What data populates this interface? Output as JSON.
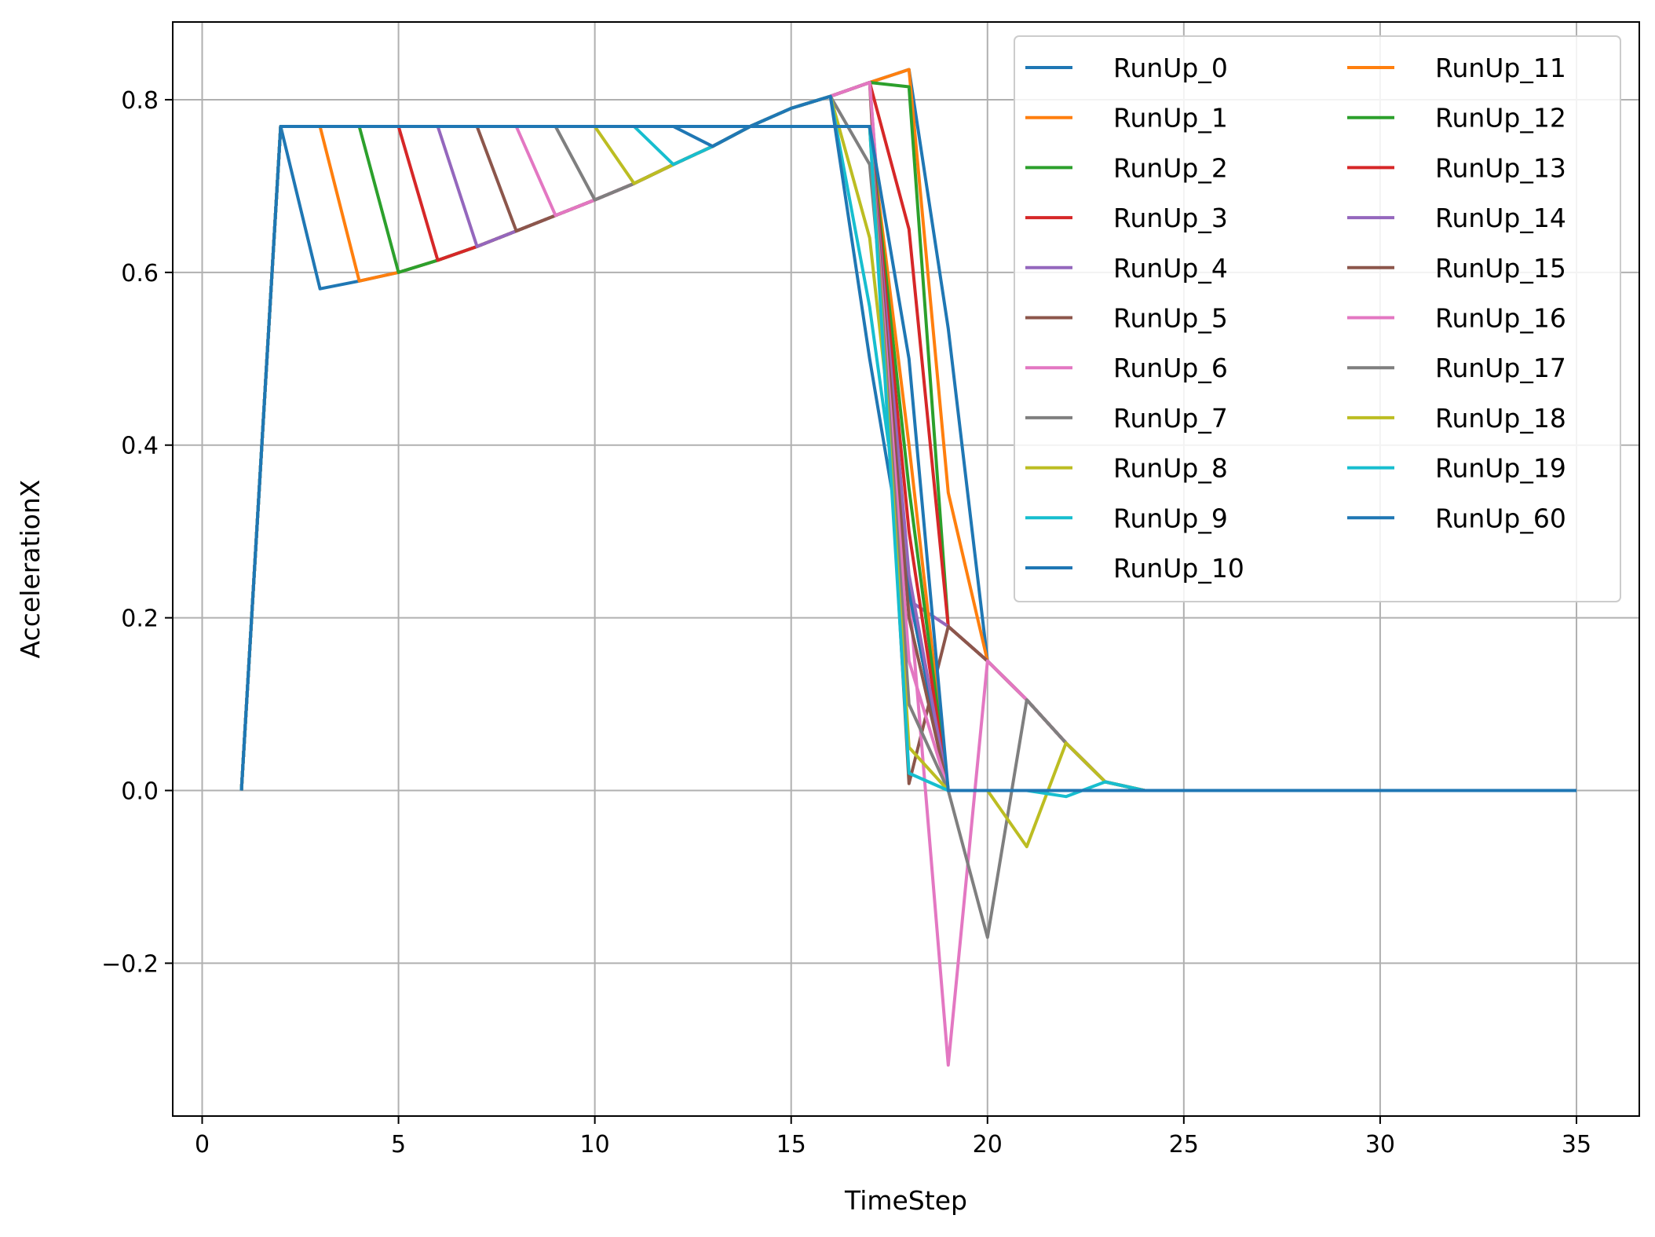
{
  "chart_data": {
    "type": "line",
    "title": "",
    "xlabel": "TimeStep",
    "ylabel": "AccelerationX",
    "xlim": [
      -0.75,
      36.6
    ],
    "ylim": [
      -0.377,
      0.89
    ],
    "xticks": [
      0,
      5,
      10,
      15,
      20,
      25,
      30,
      35
    ],
    "yticks": [
      -0.2,
      0.0,
      0.2,
      0.4,
      0.6,
      0.8
    ],
    "ytick_labels": [
      "−0.2",
      "0.0",
      "0.2",
      "0.4",
      "0.6",
      "0.8"
    ],
    "grid": true,
    "legend": {
      "placement": "top-right",
      "columns": 2
    },
    "series": [
      {
        "name": "RunUp_0",
        "color": "#1f77b4",
        "x": [
          1,
          2,
          3,
          4,
          5,
          6,
          7,
          8,
          9,
          10,
          11,
          12,
          13,
          14,
          15,
          16,
          17,
          18,
          19,
          20,
          21,
          22,
          23,
          24,
          35
        ],
        "y": [
          0,
          0.769,
          0.581,
          0.59,
          0.6,
          0.614,
          0.63,
          0.648,
          0.666,
          0.684,
          0.703,
          0.725,
          0.746,
          0.77,
          0.79,
          0.804,
          0.82,
          0.835,
          0.535,
          0.15,
          0.105,
          0.055,
          0.01,
          0,
          0
        ]
      },
      {
        "name": "RunUp_1",
        "color": "#ff7f0e",
        "x": [
          1,
          2,
          3,
          4,
          5,
          6,
          7,
          8,
          9,
          10,
          11,
          12,
          13,
          14,
          15,
          16,
          17,
          18,
          19,
          20,
          21,
          22,
          23,
          24,
          35
        ],
        "y": [
          0,
          0.769,
          0.769,
          0.59,
          0.6,
          0.614,
          0.63,
          0.648,
          0.666,
          0.684,
          0.703,
          0.725,
          0.746,
          0.77,
          0.79,
          0.804,
          0.82,
          0.835,
          0.345,
          0.15,
          0.105,
          0.055,
          0.01,
          0,
          0
        ]
      },
      {
        "name": "RunUp_2",
        "color": "#2ca02c",
        "x": [
          1,
          2,
          3,
          4,
          5,
          6,
          7,
          8,
          9,
          10,
          11,
          12,
          13,
          14,
          15,
          16,
          17,
          18,
          19,
          20,
          21,
          22,
          23,
          24,
          35
        ],
        "y": [
          0,
          0.769,
          0.769,
          0.769,
          0.6,
          0.614,
          0.63,
          0.648,
          0.666,
          0.684,
          0.703,
          0.725,
          0.746,
          0.77,
          0.79,
          0.804,
          0.82,
          0.815,
          0.19,
          0.15,
          0.105,
          0.055,
          0.01,
          0,
          0
        ]
      },
      {
        "name": "RunUp_3",
        "color": "#d62728",
        "x": [
          1,
          2,
          3,
          4,
          5,
          6,
          7,
          8,
          9,
          10,
          11,
          12,
          13,
          14,
          15,
          16,
          17,
          18,
          19,
          20,
          21,
          22,
          23,
          24,
          35
        ],
        "y": [
          0,
          0.769,
          0.769,
          0.769,
          0.769,
          0.614,
          0.63,
          0.648,
          0.666,
          0.684,
          0.703,
          0.725,
          0.746,
          0.77,
          0.79,
          0.804,
          0.82,
          0.65,
          0.19,
          0.15,
          0.105,
          0.055,
          0.01,
          0,
          0
        ]
      },
      {
        "name": "RunUp_4",
        "color": "#9467bd",
        "x": [
          1,
          2,
          3,
          4,
          5,
          6,
          7,
          8,
          9,
          10,
          11,
          12,
          13,
          14,
          15,
          16,
          17,
          18,
          19,
          20,
          21,
          22,
          23,
          24,
          35
        ],
        "y": [
          0,
          0.769,
          0.769,
          0.769,
          0.769,
          0.769,
          0.63,
          0.648,
          0.666,
          0.684,
          0.703,
          0.725,
          0.746,
          0.77,
          0.79,
          0.804,
          0.82,
          0.22,
          0.19,
          0.15,
          0.105,
          0.055,
          0.01,
          0,
          0
        ]
      },
      {
        "name": "RunUp_5",
        "color": "#8c564b",
        "x": [
          1,
          2,
          3,
          4,
          5,
          6,
          7,
          8,
          9,
          10,
          11,
          12,
          13,
          14,
          15,
          16,
          17,
          18,
          19,
          20,
          21,
          22,
          23,
          24,
          35
        ],
        "y": [
          0,
          0.769,
          0.769,
          0.769,
          0.769,
          0.769,
          0.769,
          0.648,
          0.666,
          0.684,
          0.703,
          0.725,
          0.746,
          0.77,
          0.79,
          0.804,
          0.82,
          0.008,
          0.19,
          0.15,
          0.105,
          0.055,
          0.01,
          0,
          0
        ]
      },
      {
        "name": "RunUp_6",
        "color": "#e377c2",
        "x": [
          1,
          2,
          3,
          4,
          5,
          6,
          7,
          8,
          9,
          10,
          11,
          12,
          13,
          14,
          15,
          16,
          17,
          18,
          19,
          20,
          21,
          22,
          23,
          24,
          35
        ],
        "y": [
          0,
          0.769,
          0.769,
          0.769,
          0.769,
          0.769,
          0.769,
          0.769,
          0.666,
          0.684,
          0.703,
          0.725,
          0.746,
          0.77,
          0.79,
          0.804,
          0.82,
          0.23,
          -0.318,
          0.15,
          0.105,
          0.055,
          0.01,
          0,
          0
        ]
      },
      {
        "name": "RunUp_7",
        "color": "#7f7f7f",
        "x": [
          1,
          2,
          3,
          4,
          5,
          6,
          7,
          8,
          9,
          10,
          11,
          12,
          13,
          14,
          15,
          16,
          17,
          18,
          19,
          20,
          21,
          22,
          23,
          24,
          35
        ],
        "y": [
          0,
          0.769,
          0.769,
          0.769,
          0.769,
          0.769,
          0.769,
          0.769,
          0.769,
          0.684,
          0.703,
          0.725,
          0.746,
          0.77,
          0.79,
          0.804,
          0.725,
          0.23,
          0.0,
          -0.17,
          0.105,
          0.055,
          0.01,
          0,
          0
        ]
      },
      {
        "name": "RunUp_8",
        "color": "#bcbd22",
        "x": [
          1,
          2,
          3,
          4,
          5,
          6,
          7,
          8,
          9,
          10,
          11,
          12,
          13,
          14,
          15,
          16,
          17,
          18,
          19,
          20,
          21,
          22,
          23,
          24,
          35
        ],
        "y": [
          0,
          0.769,
          0.769,
          0.769,
          0.769,
          0.769,
          0.769,
          0.769,
          0.769,
          0.769,
          0.703,
          0.725,
          0.746,
          0.77,
          0.79,
          0.804,
          0.64,
          0.23,
          0.0,
          0.0,
          -0.065,
          0.055,
          0.01,
          0,
          0
        ]
      },
      {
        "name": "RunUp_9",
        "color": "#17becf",
        "x": [
          1,
          2,
          3,
          4,
          5,
          6,
          7,
          8,
          9,
          10,
          11,
          12,
          13,
          14,
          15,
          16,
          17,
          18,
          19,
          20,
          21,
          22,
          23,
          24,
          35
        ],
        "y": [
          0,
          0.769,
          0.769,
          0.769,
          0.769,
          0.769,
          0.769,
          0.769,
          0.769,
          0.769,
          0.769,
          0.725,
          0.746,
          0.77,
          0.79,
          0.804,
          0.56,
          0.23,
          0.0,
          0.0,
          0.0,
          -0.007,
          0.01,
          0,
          0
        ]
      },
      {
        "name": "RunUp_10",
        "color": "#1f77b4",
        "x": [
          1,
          2,
          3,
          4,
          5,
          6,
          7,
          8,
          9,
          10,
          11,
          12,
          13,
          14,
          15,
          16,
          17,
          18,
          19,
          20,
          21,
          22,
          23,
          24,
          35
        ],
        "y": [
          0,
          0.769,
          0.769,
          0.769,
          0.769,
          0.769,
          0.769,
          0.769,
          0.769,
          0.769,
          0.769,
          0.769,
          0.746,
          0.77,
          0.79,
          0.804,
          0.5,
          0.23,
          0.0,
          0.0,
          0.0,
          0.0,
          0.0,
          0,
          0
        ]
      },
      {
        "name": "RunUp_11",
        "color": "#ff7f0e",
        "x": [
          1,
          2,
          3,
          4,
          5,
          6,
          7,
          8,
          9,
          10,
          11,
          12,
          13,
          14,
          15,
          16,
          17,
          18,
          19,
          20,
          21,
          22,
          23,
          24,
          35
        ],
        "y": [
          0,
          0.769,
          0.769,
          0.769,
          0.769,
          0.769,
          0.769,
          0.769,
          0.769,
          0.769,
          0.769,
          0.769,
          0.769,
          0.769,
          0.769,
          0.769,
          0.769,
          0.4,
          0.0,
          0.0,
          0.0,
          0.0,
          0.0,
          0,
          0
        ]
      },
      {
        "name": "RunUp_12",
        "color": "#2ca02c",
        "x": [
          1,
          2,
          3,
          4,
          5,
          6,
          7,
          8,
          9,
          10,
          11,
          12,
          13,
          14,
          15,
          16,
          17,
          18,
          19,
          20,
          21,
          22,
          23,
          24,
          35
        ],
        "y": [
          0,
          0.769,
          0.769,
          0.769,
          0.769,
          0.769,
          0.769,
          0.769,
          0.769,
          0.769,
          0.769,
          0.769,
          0.769,
          0.769,
          0.769,
          0.769,
          0.769,
          0.35,
          0.0,
          0.0,
          0.0,
          0.0,
          0.0,
          0,
          0
        ]
      },
      {
        "name": "RunUp_13",
        "color": "#d62728",
        "x": [
          1,
          2,
          3,
          4,
          5,
          6,
          7,
          8,
          9,
          10,
          11,
          12,
          13,
          14,
          15,
          16,
          17,
          18,
          19,
          20,
          21,
          22,
          23,
          24,
          35
        ],
        "y": [
          0,
          0.769,
          0.769,
          0.769,
          0.769,
          0.769,
          0.769,
          0.769,
          0.769,
          0.769,
          0.769,
          0.769,
          0.769,
          0.769,
          0.769,
          0.769,
          0.769,
          0.3,
          0.0,
          0.0,
          0.0,
          0.0,
          0.0,
          0,
          0
        ]
      },
      {
        "name": "RunUp_14",
        "color": "#9467bd",
        "x": [
          1,
          2,
          3,
          4,
          5,
          6,
          7,
          8,
          9,
          10,
          11,
          12,
          13,
          14,
          15,
          16,
          17,
          18,
          19,
          20,
          21,
          22,
          23,
          24,
          35
        ],
        "y": [
          0,
          0.769,
          0.769,
          0.769,
          0.769,
          0.769,
          0.769,
          0.769,
          0.769,
          0.769,
          0.769,
          0.769,
          0.769,
          0.769,
          0.769,
          0.769,
          0.769,
          0.25,
          0.0,
          0.0,
          0.0,
          0.0,
          0.0,
          0,
          0
        ]
      },
      {
        "name": "RunUp_15",
        "color": "#8c564b",
        "x": [
          1,
          2,
          3,
          4,
          5,
          6,
          7,
          8,
          9,
          10,
          11,
          12,
          13,
          14,
          15,
          16,
          17,
          18,
          19,
          20,
          21,
          22,
          23,
          24,
          35
        ],
        "y": [
          0,
          0.769,
          0.769,
          0.769,
          0.769,
          0.769,
          0.769,
          0.769,
          0.769,
          0.769,
          0.769,
          0.769,
          0.769,
          0.769,
          0.769,
          0.769,
          0.769,
          0.2,
          0.0,
          0.0,
          0.0,
          0.0,
          0.0,
          0,
          0
        ]
      },
      {
        "name": "RunUp_16",
        "color": "#e377c2",
        "x": [
          1,
          2,
          3,
          4,
          5,
          6,
          7,
          8,
          9,
          10,
          11,
          12,
          13,
          14,
          15,
          16,
          17,
          18,
          19,
          20,
          21,
          22,
          23,
          24,
          35
        ],
        "y": [
          0,
          0.769,
          0.769,
          0.769,
          0.769,
          0.769,
          0.769,
          0.769,
          0.769,
          0.769,
          0.769,
          0.769,
          0.769,
          0.769,
          0.769,
          0.769,
          0.769,
          0.15,
          0.0,
          0.0,
          0.0,
          0.0,
          0.0,
          0,
          0
        ]
      },
      {
        "name": "RunUp_17",
        "color": "#7f7f7f",
        "x": [
          1,
          2,
          3,
          4,
          5,
          6,
          7,
          8,
          9,
          10,
          11,
          12,
          13,
          14,
          15,
          16,
          17,
          18,
          19,
          20,
          21,
          22,
          23,
          24,
          35
        ],
        "y": [
          0,
          0.769,
          0.769,
          0.769,
          0.769,
          0.769,
          0.769,
          0.769,
          0.769,
          0.769,
          0.769,
          0.769,
          0.769,
          0.769,
          0.769,
          0.769,
          0.769,
          0.1,
          0.0,
          0.0,
          0.0,
          0.0,
          0.0,
          0,
          0
        ]
      },
      {
        "name": "RunUp_18",
        "color": "#bcbd22",
        "x": [
          1,
          2,
          3,
          4,
          5,
          6,
          7,
          8,
          9,
          10,
          11,
          12,
          13,
          14,
          15,
          16,
          17,
          18,
          19,
          20,
          21,
          22,
          23,
          24,
          35
        ],
        "y": [
          0,
          0.769,
          0.769,
          0.769,
          0.769,
          0.769,
          0.769,
          0.769,
          0.769,
          0.769,
          0.769,
          0.769,
          0.769,
          0.769,
          0.769,
          0.769,
          0.769,
          0.05,
          0.0,
          0.0,
          0.0,
          0.0,
          0.0,
          0,
          0
        ]
      },
      {
        "name": "RunUp_19",
        "color": "#17becf",
        "x": [
          1,
          2,
          3,
          4,
          5,
          6,
          7,
          8,
          9,
          10,
          11,
          12,
          13,
          14,
          15,
          16,
          17,
          18,
          19,
          20,
          21,
          22,
          23,
          24,
          35
        ],
        "y": [
          0,
          0.769,
          0.769,
          0.769,
          0.769,
          0.769,
          0.769,
          0.769,
          0.769,
          0.769,
          0.769,
          0.769,
          0.769,
          0.769,
          0.769,
          0.769,
          0.769,
          0.02,
          0.0,
          0.0,
          0.0,
          0.0,
          0.0,
          0,
          0
        ]
      },
      {
        "name": "RunUp_60",
        "color": "#1f77b4",
        "x": [
          1,
          2,
          3,
          4,
          5,
          6,
          7,
          8,
          9,
          10,
          11,
          12,
          13,
          14,
          15,
          16,
          17,
          18,
          19,
          20,
          21,
          22,
          23,
          24,
          35
        ],
        "y": [
          0,
          0.769,
          0.769,
          0.769,
          0.769,
          0.769,
          0.769,
          0.769,
          0.769,
          0.769,
          0.769,
          0.769,
          0.769,
          0.769,
          0.769,
          0.769,
          0.769,
          0.5,
          0.0,
          0.0,
          0.0,
          0.0,
          0.0,
          0,
          0
        ]
      }
    ]
  }
}
